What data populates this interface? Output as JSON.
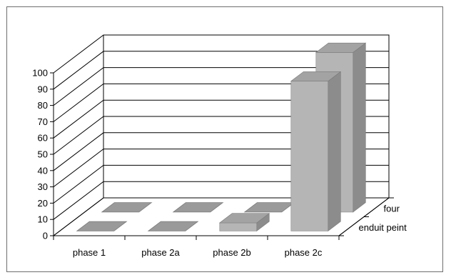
{
  "chart_data": {
    "type": "bar",
    "style": "3d-clustered-depth",
    "categories": [
      "phase 1",
      "phase 2a",
      "phase 2b",
      "phase 2c"
    ],
    "series": [
      {
        "name": "enduit peint",
        "values": [
          0,
          0,
          5,
          92
        ],
        "color": "#b5b5b5"
      },
      {
        "name": "four",
        "values": [
          0,
          0,
          0,
          98
        ],
        "color": "#b5b5b5"
      }
    ],
    "ylim": [
      0,
      100
    ],
    "yticks": [
      0,
      10,
      20,
      30,
      40,
      50,
      60,
      70,
      80,
      90,
      100
    ],
    "grid": true,
    "title": "",
    "xlabel": "",
    "ylabel": ""
  }
}
